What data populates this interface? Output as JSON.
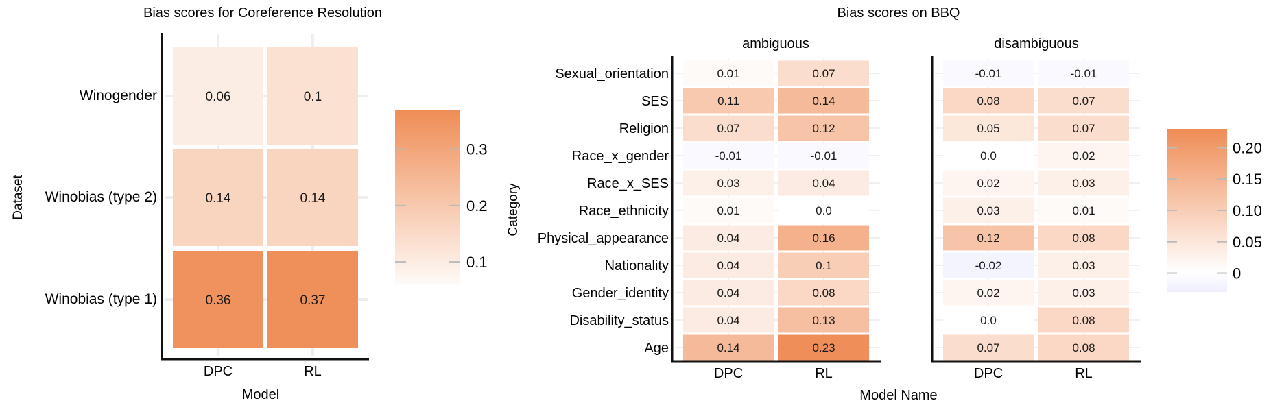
{
  "colors": {
    "high": "#ef8c55",
    "zero": "#ffffff",
    "negative": "#eeeeff",
    "axis": "#111111",
    "cell_text": "#1a1a1a"
  },
  "chart_data": [
    {
      "type": "heatmap",
      "title": "Bias scores for Coreference Resolution",
      "xlabel": "Model",
      "ylabel": "Dataset",
      "x": [
        "DPC",
        "RL"
      ],
      "y": [
        "Winogender",
        "Winobias (type 2)",
        "Winobias (type 1)"
      ],
      "values": [
        [
          0.06,
          0.1
        ],
        [
          0.14,
          0.14
        ],
        [
          0.36,
          0.37
        ]
      ],
      "value_labels": [
        [
          "0.06",
          "0.1"
        ],
        [
          "0.14",
          "0.14"
        ],
        [
          "0.36",
          "0.37"
        ]
      ],
      "colorbar": {
        "ticks": [
          0.1,
          0.2,
          0.3
        ],
        "tick_labels": [
          "0.1",
          "0.2",
          "0.3"
        ],
        "range": [
          0.06,
          0.37
        ]
      }
    },
    {
      "type": "heatmap",
      "title": "Bias scores on BBQ",
      "xlabel": "Model Name",
      "ylabel": "Category",
      "x": [
        "DPC",
        "RL"
      ],
      "y": [
        "Sexual_orientation",
        "SES",
        "Religion",
        "Race_x_gender",
        "Race_x_SES",
        "Race_ethnicity",
        "Physical_appearance",
        "Nationality",
        "Gender_identity",
        "Disability_status",
        "Age"
      ],
      "panels": [
        {
          "name": "ambiguous",
          "values": [
            [
              0.01,
              0.07
            ],
            [
              0.11,
              0.14
            ],
            [
              0.07,
              0.12
            ],
            [
              -0.01,
              -0.01
            ],
            [
              0.03,
              0.04
            ],
            [
              0.01,
              0.0
            ],
            [
              0.04,
              0.16
            ],
            [
              0.04,
              0.1
            ],
            [
              0.04,
              0.08
            ],
            [
              0.04,
              0.13
            ],
            [
              0.14,
              0.23
            ]
          ],
          "value_labels": [
            [
              "0.01",
              "0.07"
            ],
            [
              "0.11",
              "0.14"
            ],
            [
              "0.07",
              "0.12"
            ],
            [
              "-0.01",
              "-0.01"
            ],
            [
              "0.03",
              "0.04"
            ],
            [
              "0.01",
              "0.0"
            ],
            [
              "0.04",
              "0.16"
            ],
            [
              "0.04",
              "0.1"
            ],
            [
              "0.04",
              "0.08"
            ],
            [
              "0.04",
              "0.13"
            ],
            [
              "0.14",
              "0.23"
            ]
          ]
        },
        {
          "name": "disambiguous",
          "values": [
            [
              -0.01,
              -0.01
            ],
            [
              0.08,
              0.07
            ],
            [
              0.05,
              0.07
            ],
            [
              0.0,
              0.02
            ],
            [
              0.02,
              0.03
            ],
            [
              0.03,
              0.01
            ],
            [
              0.12,
              0.08
            ],
            [
              -0.02,
              0.03
            ],
            [
              0.02,
              0.03
            ],
            [
              0.0,
              0.08
            ],
            [
              0.07,
              0.08
            ]
          ],
          "value_labels": [
            [
              "-0.01",
              "-0.01"
            ],
            [
              "0.08",
              "0.07"
            ],
            [
              "0.05",
              "0.07"
            ],
            [
              "0.0",
              "0.02"
            ],
            [
              "0.02",
              "0.03"
            ],
            [
              "0.03",
              "0.01"
            ],
            [
              "0.12",
              "0.08"
            ],
            [
              "-0.02",
              "0.03"
            ],
            [
              "0.02",
              "0.03"
            ],
            [
              "0.0",
              "0.08"
            ],
            [
              "0.07",
              "0.08"
            ]
          ]
        }
      ],
      "colorbar": {
        "ticks": [
          0,
          0.05,
          0.1,
          0.15,
          0.2
        ],
        "tick_labels": [
          "0",
          "0.05",
          "0.10",
          "0.15",
          "0.20"
        ],
        "range": [
          -0.03,
          0.23
        ]
      }
    }
  ]
}
